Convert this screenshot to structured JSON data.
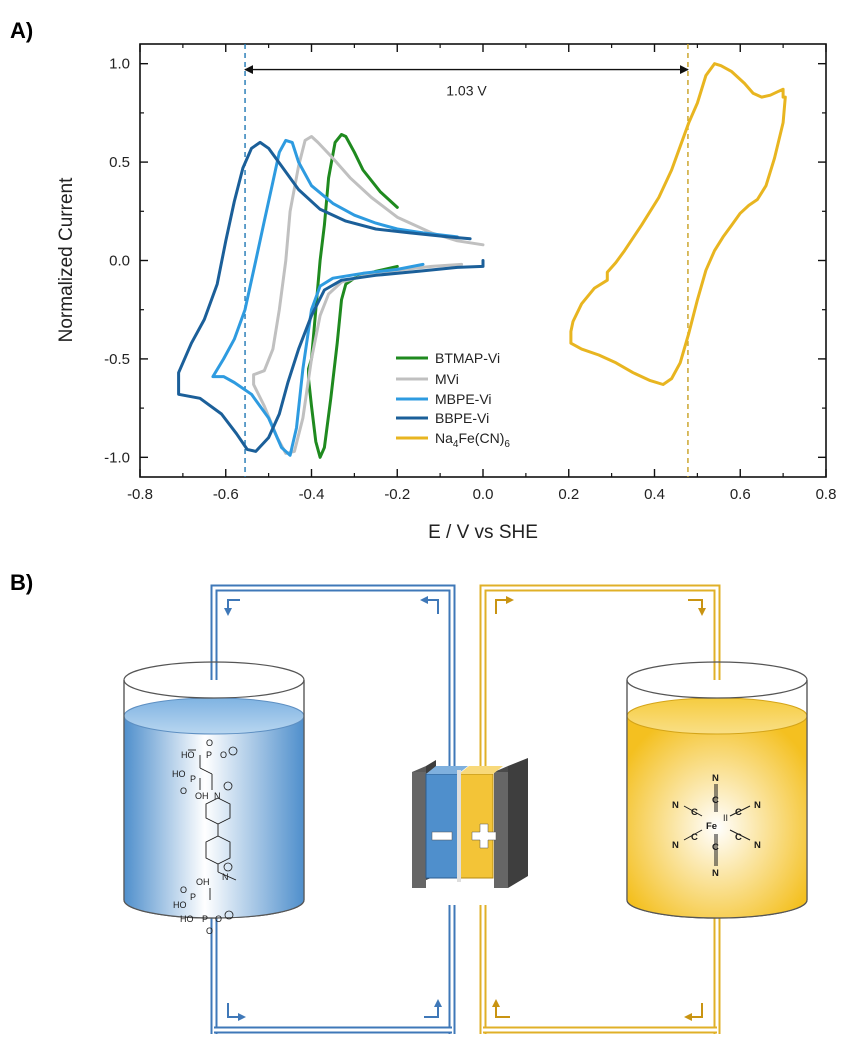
{
  "panels": {
    "a_label": "A)",
    "b_label": "B)"
  },
  "chart_data": {
    "type": "line",
    "xlabel": "E / V vs SHE",
    "ylabel": "Normalized Current",
    "xlim": [
      -0.8,
      0.8
    ],
    "ylim": [
      -1.1,
      1.1
    ],
    "x_ticks": [
      -0.8,
      -0.6,
      -0.4,
      -0.2,
      0.0,
      0.2,
      0.4,
      0.6,
      0.8
    ],
    "x_tick_labels": [
      "-0.8",
      "-0.6",
      "-0.4",
      "-0.2",
      "0.0",
      "0.2",
      "0.4",
      "0.6",
      "0.8"
    ],
    "y_ticks": [
      1.0,
      0.5,
      0.0,
      -0.5,
      -1.0
    ],
    "y_tick_labels": [
      "1.0",
      "0.5",
      "0.0",
      "-0.5",
      "-1.0"
    ],
    "grid": false,
    "legend_position": "bottom-center",
    "annotation": {
      "text": "1.03 V",
      "x_start": -0.555,
      "x_end": 0.478,
      "y": 0.97
    },
    "reference_lines": [
      {
        "x": -0.555,
        "color": "#1f77b4"
      },
      {
        "x": 0.478,
        "color": "#c8a020"
      }
    ],
    "series": [
      {
        "name": "BTMAP-Vi",
        "color": "#1f8a1f",
        "points": [
          [
            -0.2,
            0.27
          ],
          [
            -0.24,
            0.35
          ],
          [
            -0.28,
            0.46
          ],
          [
            -0.3,
            0.55
          ],
          [
            -0.32,
            0.63
          ],
          [
            -0.33,
            0.64
          ],
          [
            -0.345,
            0.6
          ],
          [
            -0.36,
            0.42
          ],
          [
            -0.37,
            0.18
          ],
          [
            -0.38,
            0.0
          ],
          [
            -0.39,
            -0.25
          ],
          [
            -0.4,
            -0.5
          ],
          [
            -0.407,
            -0.55
          ],
          [
            -0.407,
            -0.6
          ],
          [
            -0.4,
            -0.74
          ],
          [
            -0.39,
            -0.92
          ],
          [
            -0.38,
            -1.0
          ],
          [
            -0.37,
            -0.95
          ],
          [
            -0.355,
            -0.7
          ],
          [
            -0.34,
            -0.42
          ],
          [
            -0.33,
            -0.2
          ],
          [
            -0.32,
            -0.12
          ],
          [
            -0.3,
            -0.09
          ],
          [
            -0.25,
            -0.055
          ],
          [
            -0.2,
            -0.03
          ]
        ]
      },
      {
        "name": "MVi",
        "color": "#c0c0c0",
        "points": [
          [
            0.0,
            0.08
          ],
          [
            -0.06,
            0.1
          ],
          [
            -0.12,
            0.14
          ],
          [
            -0.2,
            0.22
          ],
          [
            -0.26,
            0.32
          ],
          [
            -0.31,
            0.42
          ],
          [
            -0.35,
            0.52
          ],
          [
            -0.385,
            0.6
          ],
          [
            -0.4,
            0.63
          ],
          [
            -0.415,
            0.61
          ],
          [
            -0.43,
            0.48
          ],
          [
            -0.45,
            0.25
          ],
          [
            -0.46,
            0.0
          ],
          [
            -0.475,
            -0.25
          ],
          [
            -0.49,
            -0.45
          ],
          [
            -0.51,
            -0.56
          ],
          [
            -0.535,
            -0.58
          ],
          [
            -0.535,
            -0.63
          ],
          [
            -0.51,
            -0.74
          ],
          [
            -0.48,
            -0.9
          ],
          [
            -0.46,
            -0.98
          ],
          [
            -0.44,
            -0.97
          ],
          [
            -0.42,
            -0.8
          ],
          [
            -0.4,
            -0.5
          ],
          [
            -0.38,
            -0.28
          ],
          [
            -0.36,
            -0.17
          ],
          [
            -0.33,
            -0.11
          ],
          [
            -0.28,
            -0.08
          ],
          [
            -0.2,
            -0.05
          ],
          [
            -0.12,
            -0.03
          ],
          [
            -0.05,
            -0.02
          ]
        ]
      },
      {
        "name": "MBPE-Vi",
        "color": "#2e9be0",
        "points": [
          [
            -0.14,
            -0.02
          ],
          [
            -0.2,
            -0.045
          ],
          [
            -0.28,
            -0.065
          ],
          [
            -0.35,
            -0.09
          ],
          [
            -0.38,
            -0.13
          ],
          [
            -0.4,
            -0.25
          ],
          [
            -0.42,
            -0.55
          ],
          [
            -0.435,
            -0.85
          ],
          [
            -0.45,
            -0.99
          ],
          [
            -0.47,
            -0.95
          ],
          [
            -0.5,
            -0.8
          ],
          [
            -0.54,
            -0.68
          ],
          [
            -0.58,
            -0.62
          ],
          [
            -0.605,
            -0.59
          ],
          [
            -0.63,
            -0.59
          ],
          [
            -0.605,
            -0.5
          ],
          [
            -0.58,
            -0.4
          ],
          [
            -0.555,
            -0.25
          ],
          [
            -0.53,
            0.0
          ],
          [
            -0.51,
            0.2
          ],
          [
            -0.49,
            0.4
          ],
          [
            -0.475,
            0.55
          ],
          [
            -0.46,
            0.61
          ],
          [
            -0.445,
            0.6
          ],
          [
            -0.43,
            0.5
          ],
          [
            -0.4,
            0.38
          ],
          [
            -0.35,
            0.29
          ],
          [
            -0.3,
            0.23
          ],
          [
            -0.25,
            0.19
          ],
          [
            -0.2,
            0.16
          ],
          [
            -0.14,
            0.14
          ],
          [
            -0.06,
            0.12
          ]
        ]
      },
      {
        "name": "BBPE-Vi",
        "color": "#1b5f99",
        "points": [
          [
            0.0,
            0.0
          ],
          [
            -0.0,
            -0.03
          ],
          [
            -0.06,
            -0.035
          ],
          [
            -0.15,
            -0.055
          ],
          [
            -0.25,
            -0.075
          ],
          [
            -0.33,
            -0.1
          ],
          [
            -0.37,
            -0.15
          ],
          [
            -0.4,
            -0.28
          ],
          [
            -0.43,
            -0.45
          ],
          [
            -0.455,
            -0.62
          ],
          [
            -0.475,
            -0.78
          ],
          [
            -0.5,
            -0.9
          ],
          [
            -0.53,
            -0.97
          ],
          [
            -0.55,
            -0.96
          ],
          [
            -0.575,
            -0.88
          ],
          [
            -0.61,
            -0.78
          ],
          [
            -0.66,
            -0.7
          ],
          [
            -0.71,
            -0.68
          ],
          [
            -0.71,
            -0.57
          ],
          [
            -0.68,
            -0.42
          ],
          [
            -0.65,
            -0.3
          ],
          [
            -0.62,
            -0.12
          ],
          [
            -0.6,
            0.1
          ],
          [
            -0.58,
            0.3
          ],
          [
            -0.56,
            0.47
          ],
          [
            -0.54,
            0.57
          ],
          [
            -0.52,
            0.6
          ],
          [
            -0.5,
            0.57
          ],
          [
            -0.47,
            0.48
          ],
          [
            -0.43,
            0.36
          ],
          [
            -0.38,
            0.26
          ],
          [
            -0.32,
            0.2
          ],
          [
            -0.25,
            0.16
          ],
          [
            -0.17,
            0.14
          ],
          [
            -0.08,
            0.12
          ],
          [
            -0.03,
            0.11
          ]
        ]
      },
      {
        "name": "Na4Fe(CN)6",
        "color": "#e8b520",
        "points": [
          [
            0.7,
            0.83
          ],
          [
            0.7,
            0.87
          ],
          [
            0.69,
            0.86
          ],
          [
            0.67,
            0.84
          ],
          [
            0.65,
            0.83
          ],
          [
            0.63,
            0.85
          ],
          [
            0.61,
            0.9
          ],
          [
            0.58,
            0.96
          ],
          [
            0.555,
            0.99
          ],
          [
            0.54,
            1.0
          ],
          [
            0.52,
            0.94
          ],
          [
            0.5,
            0.8
          ],
          [
            0.48,
            0.7
          ],
          [
            0.46,
            0.58
          ],
          [
            0.44,
            0.46
          ],
          [
            0.41,
            0.32
          ],
          [
            0.37,
            0.18
          ],
          [
            0.33,
            0.05
          ],
          [
            0.31,
            -0.01
          ],
          [
            0.29,
            -0.06
          ],
          [
            0.29,
            -0.1
          ],
          [
            0.26,
            -0.14
          ],
          [
            0.23,
            -0.22
          ],
          [
            0.21,
            -0.31
          ],
          [
            0.205,
            -0.36
          ],
          [
            0.205,
            -0.42
          ],
          [
            0.23,
            -0.45
          ],
          [
            0.27,
            -0.48
          ],
          [
            0.31,
            -0.52
          ],
          [
            0.35,
            -0.57
          ],
          [
            0.39,
            -0.61
          ],
          [
            0.42,
            -0.63
          ],
          [
            0.44,
            -0.6
          ],
          [
            0.46,
            -0.52
          ],
          [
            0.48,
            -0.37
          ],
          [
            0.5,
            -0.2
          ],
          [
            0.52,
            -0.05
          ],
          [
            0.54,
            0.05
          ],
          [
            0.56,
            0.12
          ],
          [
            0.58,
            0.18
          ],
          [
            0.6,
            0.24
          ],
          [
            0.62,
            0.28
          ],
          [
            0.64,
            0.31
          ],
          [
            0.66,
            0.38
          ],
          [
            0.68,
            0.52
          ],
          [
            0.7,
            0.7
          ],
          [
            0.705,
            0.83
          ]
        ]
      }
    ],
    "legend": {
      "entries": [
        "BTMAP-Vi",
        "MVi",
        "MBPE-Vi",
        "BBPE-Vi",
        "Na4Fe(CN)6"
      ]
    }
  },
  "diagram": {
    "minus_sign": "−",
    "plus_sign": "+",
    "left_molecule_labels": {
      "o_top": "O",
      "p_top": "P",
      "ho_1": "HO",
      "ominus_1": "O",
      "ho_2": "HO",
      "p_2": "P",
      "o_2": "O",
      "oh_2": "OH",
      "n_1": "N",
      "n_2": "N",
      "o_3": "O",
      "oh_3": "OH",
      "p_3": "P",
      "ho_3": "HO",
      "ho_4": "HO",
      "p_4": "P",
      "ominus_4": "O",
      "o_4": "O"
    },
    "right_molecule_labels": {
      "fe": "Fe",
      "fe_ox": "II",
      "n_top": "N",
      "c_top": "C",
      "n_bot": "N",
      "c_bot": "C",
      "n_ul": "N",
      "c_ul": "C",
      "n_ur": "N",
      "c_ur": "C",
      "n_ll": "N",
      "c_ll": "C",
      "n_lr": "N",
      "c_lr": "C"
    }
  }
}
